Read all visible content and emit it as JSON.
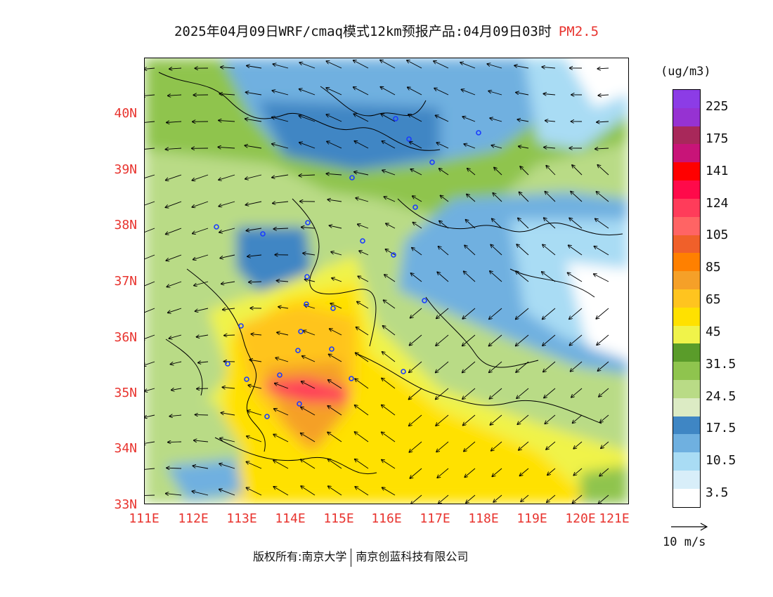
{
  "header": {
    "title": "2025年04月09日WRF/cmaq模式12km预报产品:04月09日03时",
    "pollutant": "PM2.5"
  },
  "map": {
    "lat_labels": [
      "40N",
      "39N",
      "38N",
      "37N",
      "36N",
      "35N",
      "34N",
      "33N"
    ],
    "lon_labels": [
      "111E",
      "112E",
      "113E",
      "114E",
      "115E",
      "116E",
      "117E",
      "118E",
      "119E",
      "120E",
      "121E"
    ],
    "colors": {
      "border_lines": "#000000",
      "station_marker": "#1a3cff"
    }
  },
  "legend": {
    "unit": "(ug/m3)",
    "labels": [
      "225",
      "175",
      "141",
      "124",
      "105",
      "85",
      "65",
      "45",
      "31.5",
      "24.5",
      "17.5",
      "10.5",
      "3.5"
    ],
    "colors": [
      "#ffffff",
      "#d8eef9",
      "#a9dcf4",
      "#6fb0e0",
      "#3f86c4",
      "#dcebc4",
      "#b9db86",
      "#8fc44e",
      "#5a9c2a",
      "#f0f34a",
      "#ffe100",
      "#ffc41f",
      "#f5a028",
      "#ff8000",
      "#f0602a",
      "#ff6464",
      "#ff3c5a",
      "#ff0a4a",
      "#ff0000",
      "#c81478",
      "#a8285a",
      "#9632d2",
      "#8c3ce6"
    ],
    "wind_ref": "10 m/s"
  },
  "footer": {
    "copyright": "版权所有:南京大学",
    "company": "南京创蓝科技有限公司"
  }
}
